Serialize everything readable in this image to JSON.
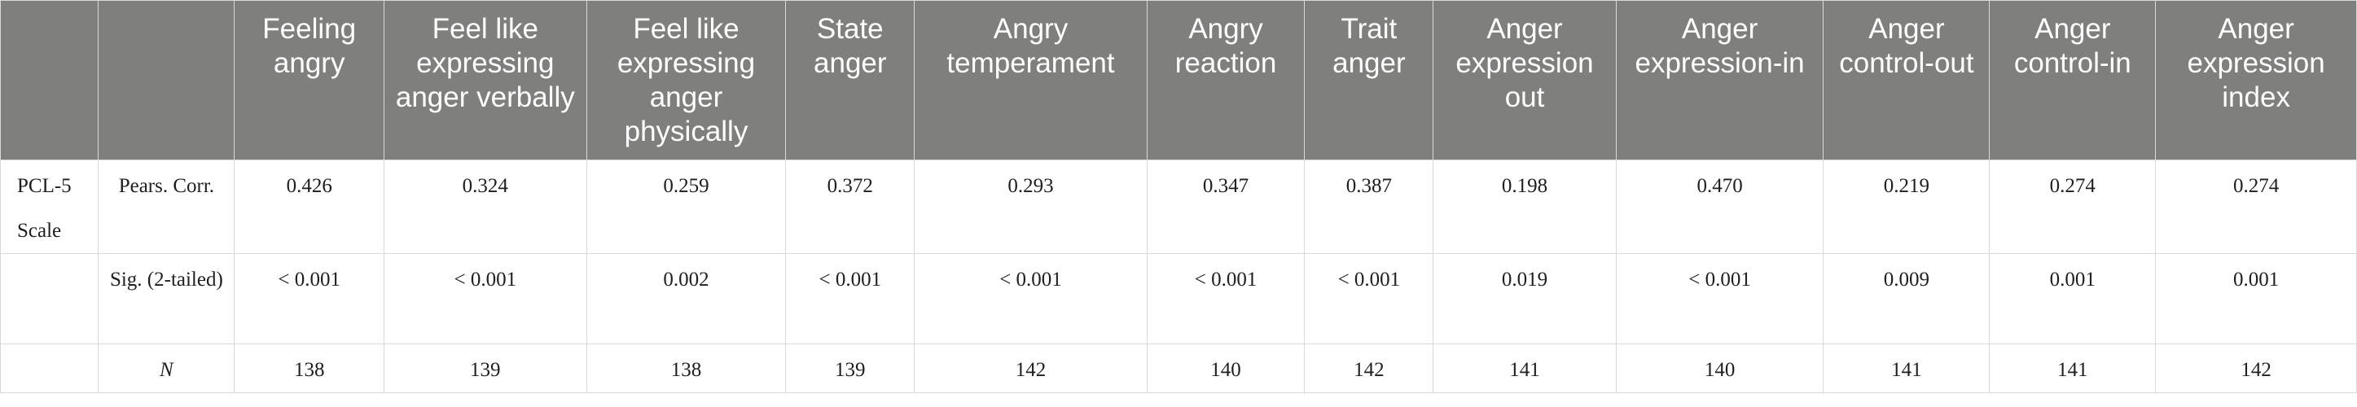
{
  "table": {
    "columns": [
      "",
      "",
      "Feeling angry",
      "Feel like expressing anger verbally",
      "Feel like expressing anger physically",
      "State anger",
      "Angry temperament",
      "Angry reaction",
      "Trait anger",
      "Anger expression out",
      "Anger expression-in",
      "Anger control-out",
      "Anger control-in",
      "Anger expression index"
    ],
    "group_label": "PCL-5 Scale",
    "rows": [
      {
        "stat": "Pears. Corr.",
        "values": [
          "0.426",
          "0.324",
          "0.259",
          "0.372",
          "0.293",
          "0.347",
          "0.387",
          "0.198",
          "0.470",
          "0.219",
          "0.274",
          "0.274"
        ]
      },
      {
        "stat": "Sig. (2-tailed)",
        "values": [
          "< 0.001",
          "< 0.001",
          "0.002",
          "< 0.001",
          "< 0.001",
          "< 0.001",
          "< 0.001",
          "0.019",
          "< 0.001",
          "0.009",
          "0.001",
          "0.001"
        ]
      },
      {
        "stat": "N",
        "values": [
          "138",
          "139",
          "138",
          "139",
          "142",
          "140",
          "142",
          "141",
          "140",
          "141",
          "141",
          "142"
        ]
      }
    ]
  }
}
